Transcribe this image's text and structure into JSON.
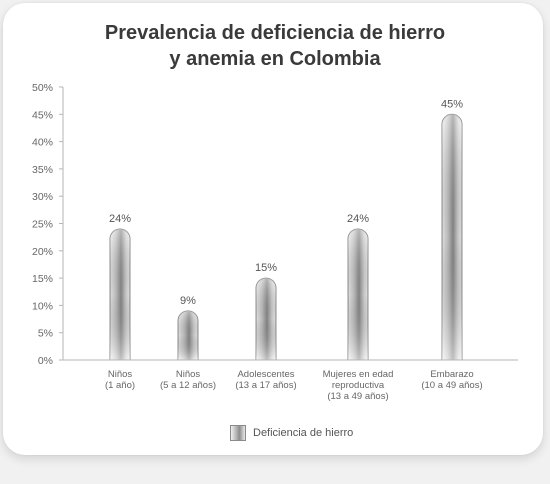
{
  "chart_data": {
    "type": "bar",
    "title_lines": [
      "Prevalencia de deficiencia de hierro",
      "y anemia en Colombia"
    ],
    "categories": [
      [
        "Niños",
        "(1 año)"
      ],
      [
        "Niños",
        "(5 a 12 años)"
      ],
      [
        "Adolescentes",
        "(13 a 17 años)"
      ],
      [
        "Mujeres en edad",
        "reproductiva",
        "(13 a 49 años)"
      ],
      [
        "Embarazo",
        "(10 a 49 años)"
      ]
    ],
    "series": [
      {
        "name": "Deficiencia de hierro",
        "values": [
          24,
          9,
          15,
          24,
          45
        ]
      }
    ],
    "data_labels": [
      "24%",
      "9%",
      "15%",
      "24%",
      "45%"
    ],
    "ylim": [
      0,
      50
    ],
    "y_ticks": [
      "0%",
      "5%",
      "10%",
      "15%",
      "20%",
      "25%",
      "30%",
      "35%",
      "40%",
      "45%",
      "50%"
    ],
    "grid": false,
    "legend_position": "bottom-center"
  }
}
